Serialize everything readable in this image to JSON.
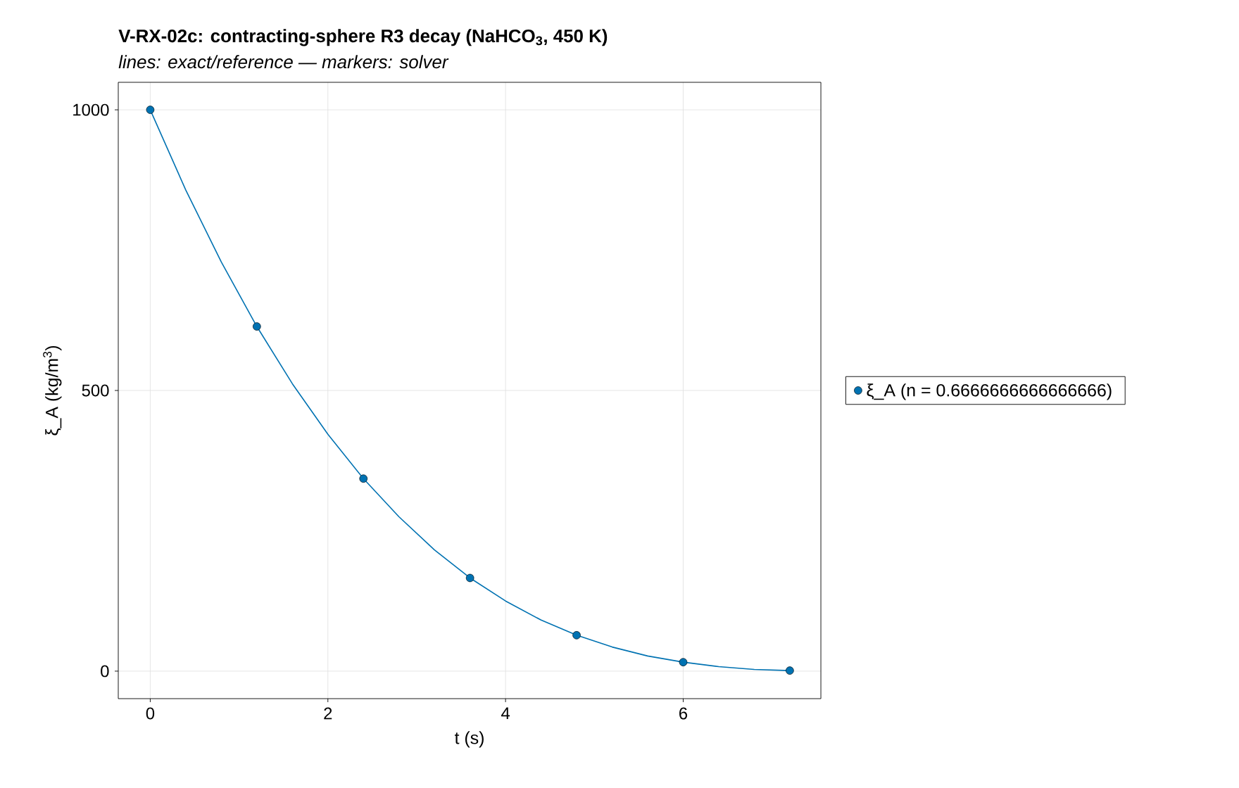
{
  "chart_data": {
    "type": "line",
    "title": "V-RX-02c: contracting-sphere R3 decay (NaHCO$_{3}$, 450 K)",
    "subtitle": "lines: exact/reference — markers: solver",
    "xlabel": "t (s)",
    "ylabel": "ξ_A (kg/m$^{3}$)",
    "xlim": [
      -0.36,
      7.55
    ],
    "ylim": [
      -49,
      1049
    ],
    "xticks": [
      0,
      2,
      4,
      6
    ],
    "yticks": [
      0,
      500,
      1000
    ],
    "grid": true,
    "legend": "right",
    "series": [
      {
        "color": "#0072b2",
        "marker": "none",
        "x": [
          0,
          0.4,
          0.8,
          1.2,
          1.6,
          2.0,
          2.4,
          2.8,
          3.2,
          3.6,
          4.0,
          4.4,
          4.8,
          5.2,
          5.6,
          6.0,
          6.4,
          6.8,
          7.2
        ],
        "values": [
          1000,
          857,
          729,
          614,
          512,
          422,
          343,
          275,
          216,
          166,
          125,
          91,
          64,
          43,
          27,
          16,
          8,
          3,
          1
        ]
      },
      {
        "type": "scatter",
        "name": "ξ_A (n = 0.6666666666666666)",
        "color": "#0072b2",
        "marker": "circle",
        "x": [
          0,
          1.2,
          2.4,
          3.6,
          4.8,
          6.0,
          7.2
        ],
        "values": [
          1000,
          614,
          343,
          166,
          64,
          16,
          1
        ]
      }
    ]
  }
}
